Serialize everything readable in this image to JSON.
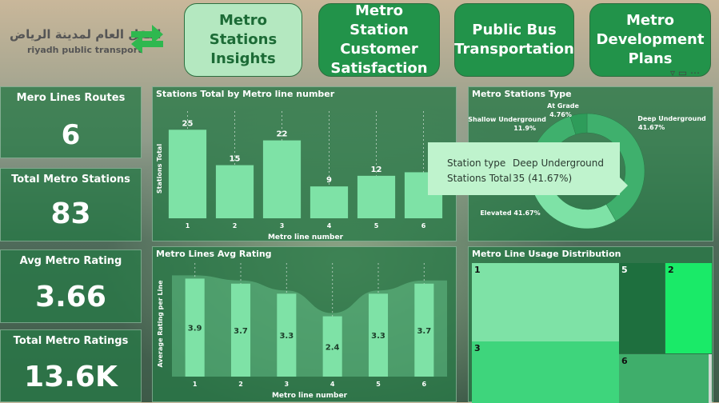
{
  "logo": {
    "arabic": "النقل العام لمدينة الرياض",
    "english": "riyadh public transport",
    "icon": "arrows-logo-icon",
    "color": "#2fb84f"
  },
  "nav": [
    {
      "label": "Metro Stations Insights",
      "active": true
    },
    {
      "label": "Metro Station Customer Satisfaction",
      "active": false
    },
    {
      "label": "Public Bus Transportation",
      "active": false
    },
    {
      "label": "Metro Development Plans",
      "active": false
    }
  ],
  "kpis": [
    {
      "title": "Mero Lines Routes",
      "value": "6"
    },
    {
      "title": "Total Metro Stations",
      "value": "83"
    },
    {
      "title": "Avg Metro Rating",
      "value": "3.66"
    },
    {
      "title": "Total Metro Ratings",
      "value": "13.6K"
    }
  ],
  "colors": {
    "bar": "#7ee2a6",
    "panel": "#287846",
    "nav_active": "#b4e8c0",
    "nav_inactive": "#22934a",
    "donut_dark": "#2e9c5a",
    "donut_mid": "#3fb06d",
    "donut_light": "#7ee2a6"
  },
  "chart_data": [
    {
      "type": "bar",
      "title": "Stations Total by Metro line number",
      "xlabel": "Metro line number",
      "ylabel": "Stations Total",
      "categories": [
        "1",
        "2",
        "3",
        "4",
        "5",
        "6"
      ],
      "values": [
        25,
        15,
        22,
        9,
        12,
        13
      ],
      "data_labels": [
        "25",
        "15",
        "22",
        "9",
        "12",
        ""
      ],
      "ylim": [
        0,
        28
      ]
    },
    {
      "type": "bar",
      "title": "Metro Lines Avg Rating",
      "xlabel": "Metro line number",
      "ylabel": "Average Rating per Line",
      "categories": [
        "1",
        "2",
        "3",
        "4",
        "5",
        "6"
      ],
      "values": [
        3.9,
        3.7,
        3.3,
        2.4,
        3.3,
        3.7
      ],
      "data_labels": [
        "3.9",
        "3.7",
        "3.3",
        "2.4",
        "3.3",
        "3.7"
      ],
      "ylim": [
        0,
        4.2
      ]
    },
    {
      "type": "pie",
      "title": "Metro Stations Type",
      "slices": [
        {
          "label": "Deep Underground",
          "pct_label": "41.67%",
          "value": 41.67
        },
        {
          "label": "Elevated",
          "pct_label": "41.67%",
          "value": 41.67
        },
        {
          "label": "Shallow Underground",
          "pct_label": "11.9%",
          "value": 11.9
        },
        {
          "label": "At Grade",
          "pct_label": "4.76%",
          "value": 4.76
        }
      ],
      "tooltip": {
        "key1": "Station type",
        "val1": "Deep Underground",
        "key2": "Stations Total",
        "val2": "35 (41.67%)"
      }
    },
    {
      "type": "treemap",
      "title": "Metro Line Usage Distribution",
      "cells": [
        {
          "label": "1",
          "color": "#7ee2a6"
        },
        {
          "label": "3",
          "color": "#3ed57c"
        },
        {
          "label": "5",
          "color": "#1e6f3e"
        },
        {
          "label": "2",
          "color": "#1aea68"
        },
        {
          "label": "6",
          "color": "#3fae6b"
        }
      ]
    }
  ]
}
